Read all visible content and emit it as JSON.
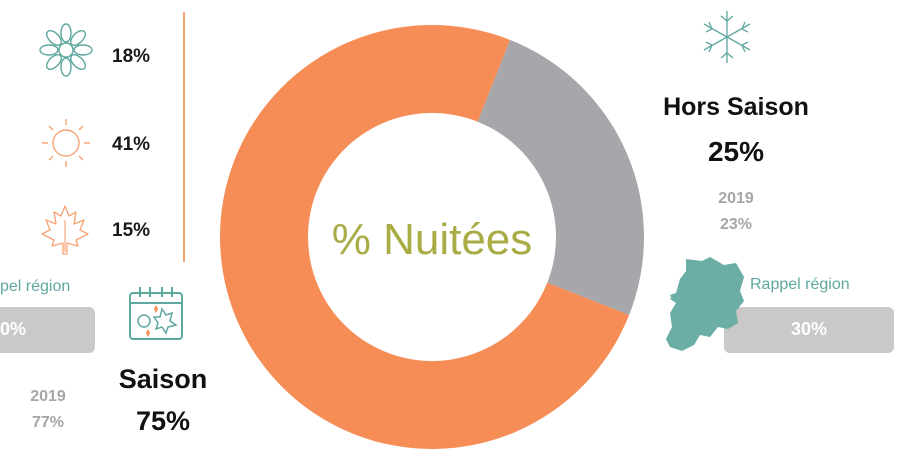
{
  "chart_data": {
    "type": "donut",
    "center_label": "% Nuitées",
    "slices": [
      {
        "label": "Hors Saison",
        "value": 25,
        "color": "#a7a7ab"
      },
      {
        "label": "Saison",
        "value": 75,
        "color": "#f68d57"
      }
    ]
  },
  "left_panel": {
    "seasons": [
      {
        "icon": "flower-icon",
        "value": "18%"
      },
      {
        "icon": "sun-icon",
        "value": "41%"
      },
      {
        "icon": "maple-leaf-icon",
        "value": "15%"
      }
    ],
    "rappel_label": "pel région",
    "rappel_value": "0%",
    "year_label": "2019",
    "year_value": "77%"
  },
  "saison": {
    "icon": "calendar-icon",
    "label": "Saison",
    "value": "75%"
  },
  "hors_saison": {
    "icon": "snowflake-icon",
    "label": "Hors Saison",
    "value": "25%",
    "year_label": "2019",
    "year_value": "23%",
    "rappel_label": "Rappel région",
    "rappel_value": "30%",
    "map_icon": "region-map-icon"
  },
  "colors": {
    "accent_orange": "#f68d57",
    "grey": "#a7a7ab",
    "teal": "#5fa8a0",
    "center_text": "#a9ab45"
  }
}
